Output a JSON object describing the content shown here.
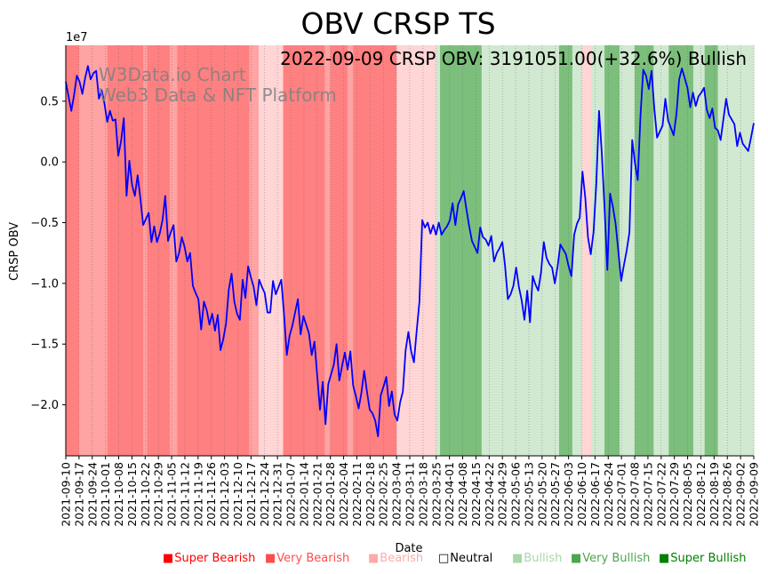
{
  "chart_data": {
    "type": "line",
    "title": "OBV CRSP TS",
    "annotation": "2022-09-09 CRSP OBV: 3191051.00(+32.6%) Bullish",
    "watermark_line1": "W3Data.io Chart",
    "watermark_line2": "Web3 Data & NFT Platform",
    "xlabel": "Date",
    "ylabel": "CRSP OBV",
    "y_multiplier_label": "1e7",
    "ylim": [
      -24200000,
      9600000
    ],
    "y_ticks": [
      5000000,
      0,
      -5000000,
      -10000000,
      -15000000,
      -20000000
    ],
    "y_tick_labels": [
      "0.5",
      "0.0",
      "−0.5",
      "−1.0",
      "−1.5",
      "−2.0"
    ],
    "x_start": "2021-09-10",
    "x_end": "2022-09-09",
    "x_tick_labels": [
      "2021-09-10",
      "2021-09-17",
      "2021-09-24",
      "2021-10-01",
      "2021-10-08",
      "2021-10-15",
      "2021-10-22",
      "2021-10-29",
      "2021-11-05",
      "2021-11-12",
      "2021-11-19",
      "2021-11-26",
      "2021-12-03",
      "2021-12-10",
      "2021-12-17",
      "2021-12-24",
      "2021-12-31",
      "2022-01-07",
      "2022-01-14",
      "2022-01-21",
      "2022-01-28",
      "2022-02-04",
      "2022-02-11",
      "2022-02-18",
      "2022-02-25",
      "2022-03-04",
      "2022-03-11",
      "2022-03-18",
      "2022-03-25",
      "2022-04-01",
      "2022-04-08",
      "2022-04-15",
      "2022-04-22",
      "2022-04-29",
      "2022-05-06",
      "2022-05-13",
      "2022-05-20",
      "2022-05-27",
      "2022-06-03",
      "2022-06-10",
      "2022-06-17",
      "2022-06-24",
      "2022-07-01",
      "2022-07-08",
      "2022-07-15",
      "2022-07-22",
      "2022-07-29",
      "2022-08-05",
      "2022-08-12",
      "2022-08-19",
      "2022-08-26",
      "2022-09-02",
      "2022-09-09"
    ],
    "series": [
      {
        "name": "CRSP OBV",
        "color": "#0000ff",
        "values": [
          6600000,
          5400000,
          4200000,
          5500000,
          7100000,
          6600000,
          5600000,
          6900000,
          7900000,
          6800000,
          7300000,
          7500000,
          5200000,
          5900000,
          4800000,
          3300000,
          4200000,
          3400000,
          3500000,
          500000,
          1700000,
          3600000,
          -2800000,
          100000,
          -1900000,
          -2800000,
          -1100000,
          -3000000,
          -5200000,
          -4700000,
          -4200000,
          -6600000,
          -5300000,
          -6600000,
          -5900000,
          -4800000,
          -2800000,
          -6500000,
          -5800000,
          -5200000,
          -8200000,
          -7500000,
          -6200000,
          -7000000,
          -8200000,
          -7500000,
          -10200000,
          -10800000,
          -11300000,
          -13800000,
          -11500000,
          -12200000,
          -13400000,
          -12500000,
          -13900000,
          -12600000,
          -15500000,
          -14600000,
          -13300000,
          -10500000,
          -9200000,
          -11500000,
          -12500000,
          -13000000,
          -9700000,
          -11200000,
          -8600000,
          -9500000,
          -10300000,
          -11800000,
          -9700000,
          -10300000,
          -10800000,
          -12400000,
          -12400000,
          -9800000,
          -10900000,
          -10300000,
          -9700000,
          -12600000,
          -15900000,
          -14300000,
          -13500000,
          -12400000,
          -11300000,
          -14200000,
          -12700000,
          -13400000,
          -14100000,
          -15900000,
          -14800000,
          -17600000,
          -20400000,
          -18100000,
          -21600000,
          -18300000,
          -17500000,
          -16700000,
          -15000000,
          -18000000,
          -16800000,
          -15700000,
          -17100000,
          -15600000,
          -18400000,
          -19300000,
          -20300000,
          -19000000,
          -17200000,
          -18900000,
          -20400000,
          -20700000,
          -21300000,
          -22600000,
          -19200000,
          -18500000,
          -17700000,
          -20100000,
          -18900000,
          -20800000,
          -21300000,
          -19800000,
          -18900000,
          -15500000,
          -14000000,
          -15600000,
          -16500000,
          -13900000,
          -11500000,
          -4800000,
          -5400000,
          -5000000,
          -5900000,
          -5200000,
          -6000000,
          -5000000,
          -6000000,
          -5600000,
          -5300000,
          -4800000,
          -3400000,
          -5200000,
          -3500000,
          -3000000,
          -2400000,
          -3900000,
          -5300000,
          -6500000,
          -7000000,
          -7500000,
          -5400000,
          -6200000,
          -6400000,
          -6900000,
          -6100000,
          -8200000,
          -7500000,
          -7100000,
          -6600000,
          -8600000,
          -11300000,
          -10900000,
          -10200000,
          -8700000,
          -10300000,
          -11400000,
          -13000000,
          -10600000,
          -13200000,
          -9400000,
          -10100000,
          -10600000,
          -9100000,
          -6600000,
          -7900000,
          -8400000,
          -8700000,
          -10000000,
          -8600000,
          -6800000,
          -7200000,
          -7600000,
          -8600000,
          -9400000,
          -6000000,
          -5100000,
          -4600000,
          -800000,
          -2900000,
          -6200000,
          -7600000,
          -5800000,
          -1800000,
          4200000,
          700000,
          -3800000,
          -8900000,
          -2600000,
          -3700000,
          -5100000,
          -7400000,
          -9800000,
          -8500000,
          -7300000,
          -5800000,
          1800000,
          -100000,
          -1500000,
          3800000,
          7600000,
          7100000,
          6000000,
          7500000,
          4400000,
          2000000,
          2500000,
          3000000,
          5200000,
          3400000,
          2800000,
          2200000,
          3900000,
          6800000,
          7700000,
          6900000,
          6100000,
          4500000,
          5700000,
          4600000,
          5400000,
          5700000,
          6100000,
          4300000,
          3600000,
          4400000,
          2800000,
          2600000,
          1800000,
          3500000,
          5200000,
          3900000,
          3500000,
          3100000,
          1300000,
          2400000,
          1500000,
          1200000,
          900000,
          2000000,
          3191051
        ]
      }
    ],
    "sentiment_colors": {
      "super_bearish": "#ff0000",
      "very_bearish": "#ff4c4c",
      "bearish": "#ffaaaa",
      "neutral": "#ffffff",
      "bullish": "#a8d8a8",
      "very_bullish": "#4ca64c",
      "super_bullish": "#008000"
    },
    "band_colors": {
      "very_bearish": "#ff8080",
      "bearish": "#ffa3a3",
      "light_bearish": "#ffd5d5",
      "light_bullish": "#d1e8d1",
      "bullish": "#7cbf7c"
    },
    "sentiment_bands": [
      {
        "start": "2021-09-10",
        "end": "2021-09-17",
        "level": "very_bearish"
      },
      {
        "start": "2021-09-17",
        "end": "2021-09-24",
        "level": "bearish"
      },
      {
        "start": "2021-09-24",
        "end": "2021-10-02",
        "level": "bearish"
      },
      {
        "start": "2021-10-02",
        "end": "2021-10-21",
        "level": "very_bearish"
      },
      {
        "start": "2021-10-21",
        "end": "2021-10-23",
        "level": "bearish"
      },
      {
        "start": "2021-10-23",
        "end": "2021-11-04",
        "level": "very_bearish"
      },
      {
        "start": "2021-11-04",
        "end": "2021-11-08",
        "level": "bearish"
      },
      {
        "start": "2021-11-08",
        "end": "2021-12-16",
        "level": "very_bearish"
      },
      {
        "start": "2021-12-16",
        "end": "2021-12-21",
        "level": "bearish"
      },
      {
        "start": "2021-12-21",
        "end": "2022-01-03",
        "level": "light_bearish"
      },
      {
        "start": "2022-01-03",
        "end": "2022-01-25",
        "level": "very_bearish"
      },
      {
        "start": "2022-01-25",
        "end": "2022-01-28",
        "level": "bearish"
      },
      {
        "start": "2022-01-28",
        "end": "2022-02-06",
        "level": "very_bearish"
      },
      {
        "start": "2022-02-06",
        "end": "2022-02-09",
        "level": "bearish"
      },
      {
        "start": "2022-02-09",
        "end": "2022-03-04",
        "level": "very_bearish"
      },
      {
        "start": "2022-03-04",
        "end": "2022-03-25",
        "level": "light_bearish"
      },
      {
        "start": "2022-03-25",
        "end": "2022-03-27",
        "level": "light_bullish"
      },
      {
        "start": "2022-03-27",
        "end": "2022-04-13",
        "level": "bullish"
      },
      {
        "start": "2022-04-13",
        "end": "2022-04-18",
        "level": "bullish"
      },
      {
        "start": "2022-04-18",
        "end": "2022-05-29",
        "level": "light_bullish"
      },
      {
        "start": "2022-05-29",
        "end": "2022-06-05",
        "level": "bullish"
      },
      {
        "start": "2022-06-05",
        "end": "2022-06-10",
        "level": "light_bullish"
      },
      {
        "start": "2022-06-10",
        "end": "2022-06-15",
        "level": "light_bearish"
      },
      {
        "start": "2022-06-15",
        "end": "2022-06-22",
        "level": "light_bullish"
      },
      {
        "start": "2022-06-22",
        "end": "2022-06-30",
        "level": "bullish"
      },
      {
        "start": "2022-06-30",
        "end": "2022-07-08",
        "level": "light_bullish"
      },
      {
        "start": "2022-07-08",
        "end": "2022-07-18",
        "level": "bullish"
      },
      {
        "start": "2022-07-18",
        "end": "2022-07-26",
        "level": "light_bullish"
      },
      {
        "start": "2022-07-26",
        "end": "2022-08-08",
        "level": "bullish"
      },
      {
        "start": "2022-08-08",
        "end": "2022-08-14",
        "level": "light_bullish"
      },
      {
        "start": "2022-08-14",
        "end": "2022-08-21",
        "level": "bullish"
      },
      {
        "start": "2022-08-21",
        "end": "2022-09-09",
        "level": "light_bullish"
      }
    ],
    "legend": [
      {
        "symbol": "■",
        "label": "Super Bearish",
        "color": "#ff0000"
      },
      {
        "symbol": "■",
        "label": "Very Bearish",
        "color": "#ff4c4c"
      },
      {
        "symbol": "■",
        "label": "Bearish",
        "color": "#ffaaaa"
      },
      {
        "symbol": "□",
        "label": "Neutral",
        "color": "#000000"
      },
      {
        "symbol": "■",
        "label": "Bullish",
        "color": "#a8d8a8"
      },
      {
        "symbol": "■",
        "label": "Very Bullish",
        "color": "#4ca64c"
      },
      {
        "symbol": "■",
        "label": "Super Bullish",
        "color": "#008000"
      }
    ]
  }
}
